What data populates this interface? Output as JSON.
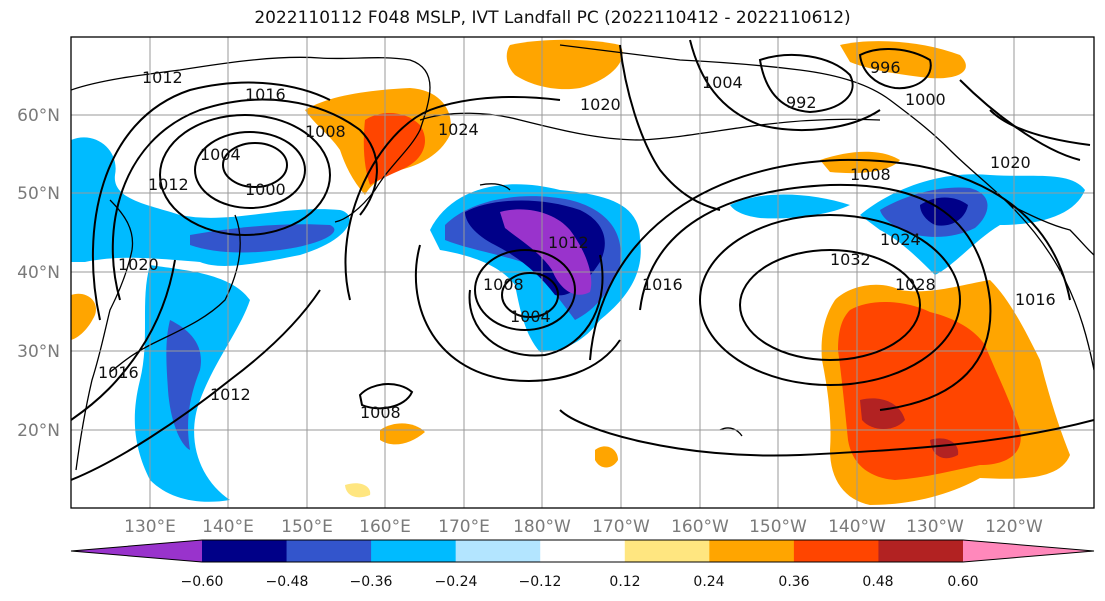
{
  "title": "2022110112 F048 MSLP, IVT Landfall PC (2022110412 - 2022110612)",
  "map": {
    "lat_labels": [
      "60°N",
      "50°N",
      "40°N",
      "30°N",
      "20°N"
    ],
    "lon_labels": [
      "130°E",
      "140°E",
      "150°E",
      "160°E",
      "170°E",
      "180°W",
      "170°W",
      "160°W",
      "150°W",
      "140°W",
      "130°W",
      "120°W"
    ],
    "isobar_labels": [
      "1012",
      "1016",
      "1008",
      "1004",
      "1000",
      "1012",
      "1020",
      "1024",
      "1012",
      "1008",
      "1004",
      "1020",
      "1004",
      "1016",
      "1016",
      "1012",
      "1008",
      "996",
      "1000",
      "992",
      "1008",
      "1020",
      "1024",
      "1032",
      "1028",
      "1016"
    ]
  },
  "colorbar": {
    "tick_labels": [
      "−0.60",
      "−0.48",
      "−0.36",
      "−0.24",
      "−0.12",
      "0.12",
      "0.24",
      "0.36",
      "0.48",
      "0.60"
    ],
    "colors": [
      "#9933cc",
      "#000088",
      "#3355cc",
      "#00bbff",
      "#b3e5ff",
      "#ffffff",
      "#ffe680",
      "#ffa500",
      "#ff4500",
      "#b22222",
      "#ff88bb"
    ]
  }
}
